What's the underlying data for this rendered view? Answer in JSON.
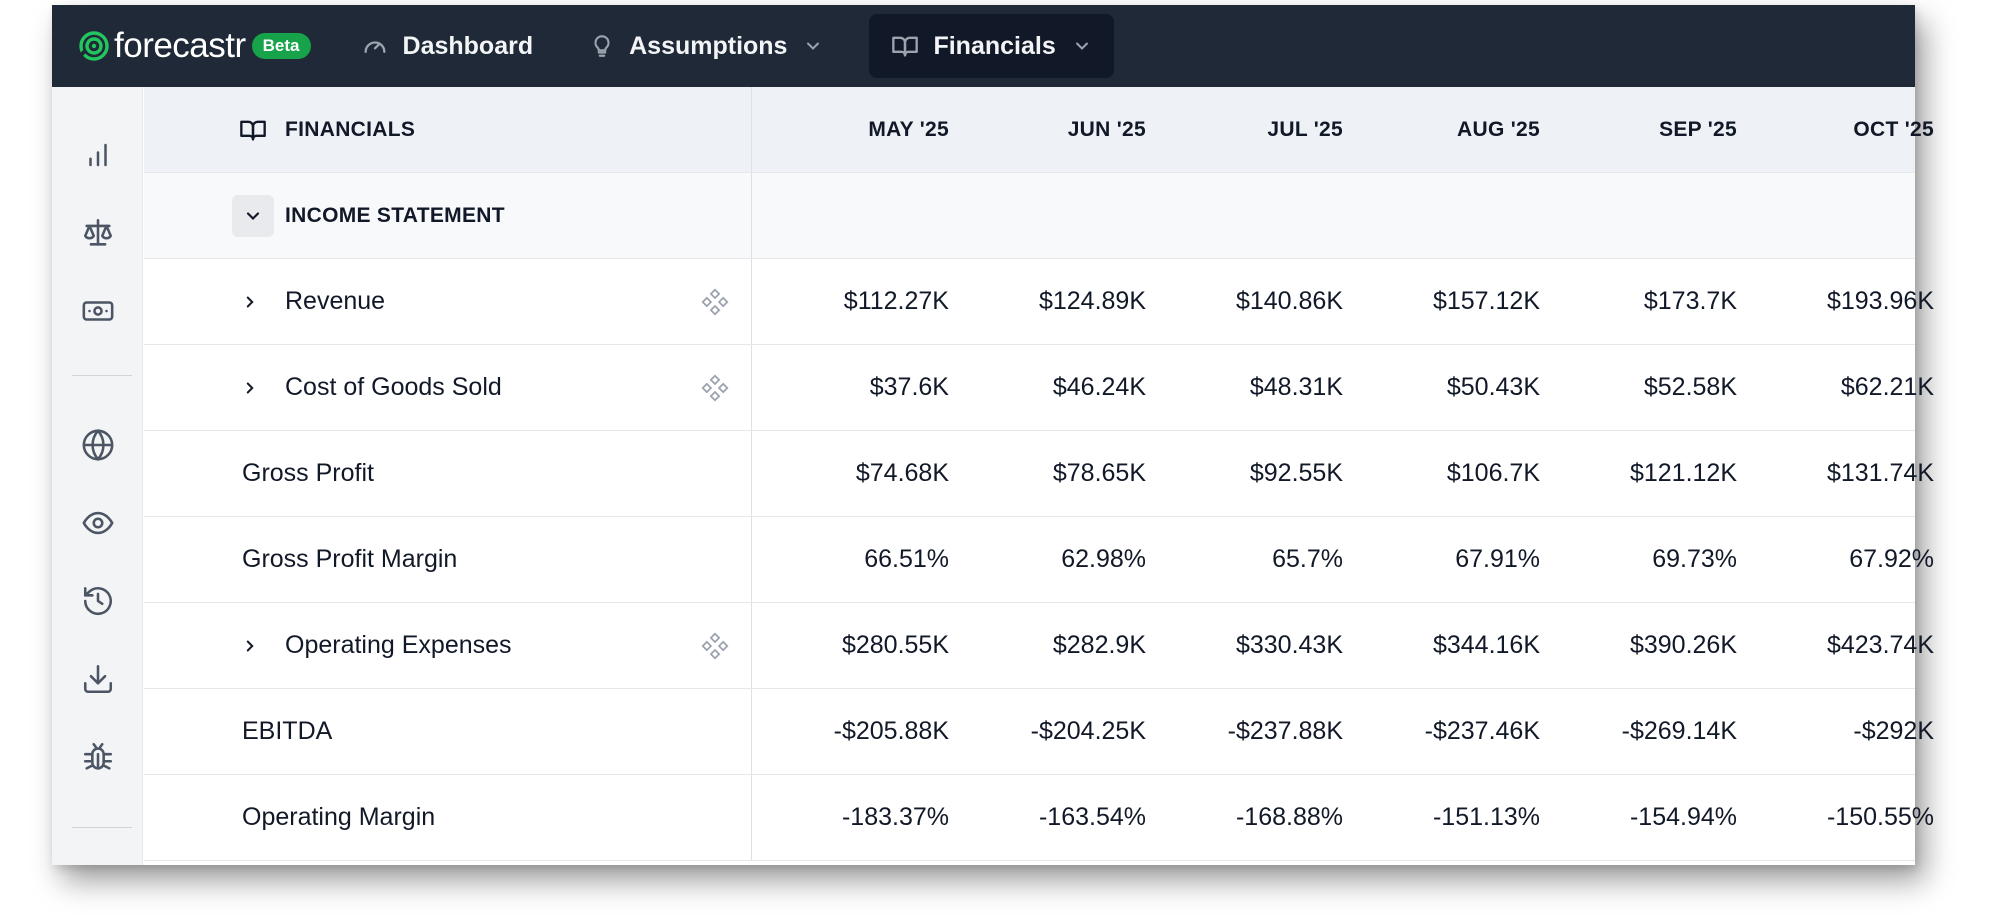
{
  "app": {
    "name": "forecastr",
    "badge": "Beta",
    "accent_color": "#16a34a",
    "nav_bg": "#1f2937"
  },
  "nav": {
    "dashboard": {
      "label": "Dashboard",
      "icon": "gauge-icon"
    },
    "assumptions": {
      "label": "Assumptions",
      "icon": "lightbulb-icon"
    },
    "financials": {
      "label": "Financials",
      "icon": "book-open-icon",
      "active": true
    }
  },
  "sidebar": {
    "icons": [
      "bar-chart-icon",
      "scale-icon",
      "cash-icon",
      "globe-icon",
      "eye-icon",
      "history-icon",
      "download-icon",
      "bug-icon"
    ]
  },
  "table": {
    "header_label": "FINANCIALS",
    "columns": [
      "MAY '25",
      "JUN '25",
      "JUL '25",
      "AUG '25",
      "SEP '25",
      "OCT '25"
    ],
    "section": "INCOME STATEMENT",
    "rows": [
      {
        "label": "Revenue",
        "expandable": true,
        "values": [
          "$112.27K",
          "$124.89K",
          "$140.86K",
          "$157.12K",
          "$173.7K",
          "$193.96K"
        ]
      },
      {
        "label": "Cost of Goods Sold",
        "expandable": true,
        "values": [
          "$37.6K",
          "$46.24K",
          "$48.31K",
          "$50.43K",
          "$52.58K",
          "$62.21K"
        ]
      },
      {
        "label": "Gross Profit",
        "expandable": false,
        "values": [
          "$74.68K",
          "$78.65K",
          "$92.55K",
          "$106.7K",
          "$121.12K",
          "$131.74K"
        ]
      },
      {
        "label": "Gross Profit Margin",
        "expandable": false,
        "values": [
          "66.51%",
          "62.98%",
          "65.7%",
          "67.91%",
          "69.73%",
          "67.92%"
        ]
      },
      {
        "label": "Operating Expenses",
        "expandable": true,
        "values": [
          "$280.55K",
          "$282.9K",
          "$330.43K",
          "$344.16K",
          "$390.26K",
          "$423.74K"
        ]
      },
      {
        "label": "EBITDA",
        "expandable": false,
        "values": [
          "-$205.88K",
          "-$204.25K",
          "-$237.88K",
          "-$237.46K",
          "-$269.14K",
          "-$292K"
        ]
      },
      {
        "label": "Operating Margin",
        "expandable": false,
        "values": [
          "-183.37%",
          "-163.54%",
          "-168.88%",
          "-151.13%",
          "-154.94%",
          "-150.55%"
        ]
      }
    ]
  }
}
